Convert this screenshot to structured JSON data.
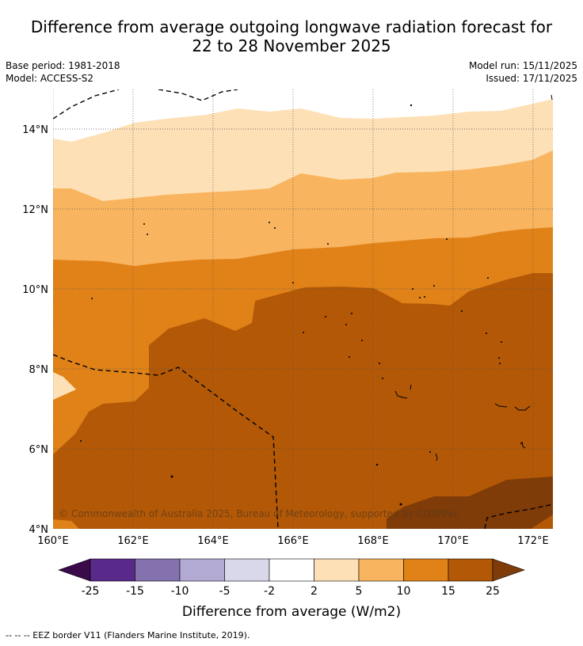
{
  "title": {
    "line1": "Difference from average outgoing longwave radiation forecast for",
    "line2": "22 to 28 November 2025"
  },
  "meta": {
    "base_period": "Base period: 1981-2018",
    "model": "Model: ACCESS-S2",
    "model_run": "Model run: 15/11/2025",
    "issued": "Issued: 17/11/2025"
  },
  "copyright": "© Commonwealth of Australia 2025, Bureau of Meteorology, supported by COSPPac",
  "footer_note": "--  --  -- EEZ border V11 (Flanders Marine Institute, 2019).",
  "map": {
    "lon_labels": [
      "160°E",
      "162°E",
      "164°E",
      "166°E",
      "168°E",
      "170°E",
      "172°E"
    ],
    "lat_labels": [
      "4°N",
      "6°N",
      "8°N",
      "10°N",
      "12°N",
      "14°N"
    ]
  },
  "colorbar": {
    "label": "Difference from average (W/m2)",
    "ticks": [
      "-25",
      "-15",
      "-10",
      "-5",
      "-2",
      "2",
      "5",
      "10",
      "15",
      "25"
    ],
    "colors": {
      "under": "#3a0a4a",
      "n25_n15": "#5a2a8a",
      "n15_n10": "#8472ae",
      "n10_n5": "#b3aad4",
      "n5_n2": "#d8d8ea",
      "n2_p2": "#ffffff",
      "p2_p5": "#fde0b5",
      "p5_p10": "#f9b45f",
      "p10_p15": "#e08218",
      "p15_p25": "#b35806",
      "over": "#7f3b08"
    }
  }
}
